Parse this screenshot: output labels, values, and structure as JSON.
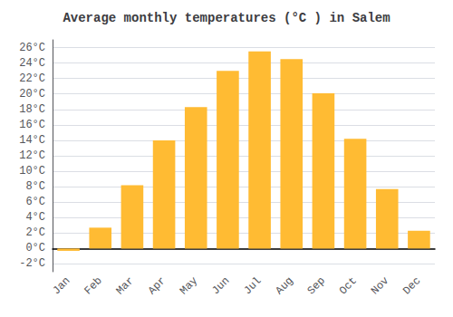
{
  "chart_data": {
    "type": "bar",
    "title": "Average monthly temperatures (°C ) in Salem",
    "categories": [
      "Jan",
      "Feb",
      "Mar",
      "Apr",
      "May",
      "Jun",
      "Jul",
      "Aug",
      "Sep",
      "Oct",
      "Nov",
      "Dec"
    ],
    "values": [
      -0.3,
      2.7,
      8.2,
      14.0,
      18.3,
      23.0,
      25.5,
      24.5,
      20.1,
      14.2,
      7.7,
      2.3
    ],
    "color": "#FFBB33",
    "ylim": [
      -3,
      27
    ],
    "yticks": [
      {
        "value": -2,
        "label": "-2°C"
      },
      {
        "value": 0,
        "label": "0°C"
      },
      {
        "value": 2,
        "label": "2°C"
      },
      {
        "value": 4,
        "label": "4°C"
      },
      {
        "value": 6,
        "label": "6°C"
      },
      {
        "value": 8,
        "label": "8°C"
      },
      {
        "value": 10,
        "label": "10°C"
      },
      {
        "value": 12,
        "label": "12°C"
      },
      {
        "value": 14,
        "label": "14°C"
      },
      {
        "value": 16,
        "label": "16°C"
      },
      {
        "value": 18,
        "label": "18°C"
      },
      {
        "value": 20,
        "label": "20°C"
      },
      {
        "value": 22,
        "label": "22°C"
      },
      {
        "value": 24,
        "label": "24°C"
      },
      {
        "value": 26,
        "label": "26°C"
      }
    ],
    "grid": true
  }
}
